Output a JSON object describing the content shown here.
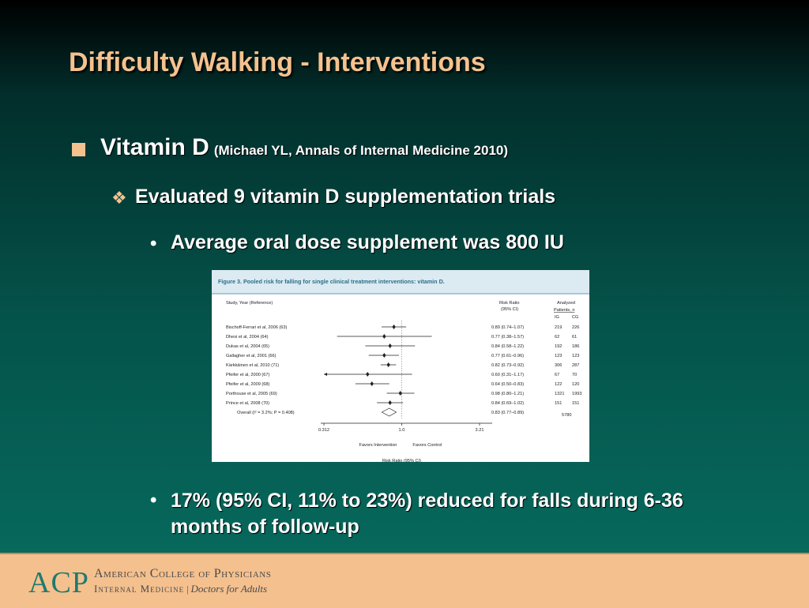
{
  "slide": {
    "title": "Difficulty Walking - Interventions",
    "l1_main": "Vitamin D",
    "l1_cite": "(Michael YL, Annals of Internal Medicine 2010)",
    "l2": "Evaluated 9 vitamin D supplementation trials",
    "l3": "Average oral dose supplement was 800 IU",
    "l4": "17% (95% CI, 11% to 23%) reduced for falls during 6-36 months of follow-up",
    "bullet_dot": "•",
    "bullet_dia": "❖"
  },
  "footer": {
    "acp": "ACP",
    "line1": "American College of Physicians",
    "line2_a": "Internal Medicine",
    "line2_sep": "|",
    "line2_b": "Doctors for Adults"
  },
  "chart_data": {
    "type": "forest",
    "title": "Figure 3. Pooled risk for falling for single clinical treatment interventions: vitamin D.",
    "headers": {
      "study": "Study, Year (Reference)",
      "rr": "Risk Ratio",
      "rr_sub": "(95% CI)",
      "analyzed": "Analyzed",
      "patients": "Patients, n",
      "ig": "IG",
      "cg": "CG"
    },
    "studies": [
      {
        "label": "Bischoff-Ferrari et al, 2006 (63)",
        "rr": 0.89,
        "lo": 0.74,
        "hi": 1.07,
        "rr_text": "0.89 (0.74–1.07)",
        "ig": "219",
        "cg": "226"
      },
      {
        "label": "Dhesi et al, 2004 (64)",
        "rr": 0.77,
        "lo": 0.38,
        "hi": 1.57,
        "rr_text": "0.77 (0.38–1.57)",
        "ig": "62",
        "cg": "61"
      },
      {
        "label": "Dukas et al, 2004 (65)",
        "rr": 0.84,
        "lo": 0.58,
        "hi": 1.22,
        "rr_text": "0.84 (0.58–1.22)",
        "ig": "192",
        "cg": "186"
      },
      {
        "label": "Gallagher et al, 2001 (66)",
        "rr": 0.77,
        "lo": 0.61,
        "hi": 0.96,
        "rr_text": "0.77 (0.61–0.96)",
        "ig": "123",
        "cg": "123"
      },
      {
        "label": "Kärkkäinen et al, 2010 (71)",
        "rr": 0.82,
        "lo": 0.73,
        "hi": 0.92,
        "rr_text": "0.82 (0.73–0.92)",
        "ig": "306",
        "cg": "287"
      },
      {
        "label": "Pfeifer et al, 2000 (67)",
        "rr": 0.6,
        "lo": 0.31,
        "hi": 1.17,
        "rr_text": "0.60 (0.31–1.17)",
        "ig": "67",
        "cg": "70"
      },
      {
        "label": "Pfeifer et al, 2009 (68)",
        "rr": 0.64,
        "lo": 0.5,
        "hi": 0.83,
        "rr_text": "0.64 (0.50–0.83)",
        "ig": "122",
        "cg": "120"
      },
      {
        "label": "Porthouse et al, 2005 (69)",
        "rr": 0.98,
        "lo": 0.8,
        "hi": 1.21,
        "rr_text": "0.98 (0.80–1.21)",
        "ig": "1321",
        "cg": "1993"
      },
      {
        "label": "Prince et al, 2008 (70)",
        "rr": 0.84,
        "lo": 0.69,
        "hi": 1.02,
        "rr_text": "0.84 (0.69–1.02)",
        "ig": "151",
        "cg": "151"
      }
    ],
    "overall": {
      "label": "Overall",
      "het": "(I² = 3.2%; P = 0.408)",
      "rr": 0.83,
      "lo": 0.77,
      "hi": 0.89,
      "rr_text": "0.83 (0.77–0.89)",
      "total": "5780"
    },
    "xscale": "log",
    "xlim": [
      0.312,
      3.21
    ],
    "xticks": [
      "0.312",
      "1.0",
      "3.21"
    ],
    "favors_left": "Favors Intervention",
    "favors_right": "Favors Control",
    "xlabel": "Risk Ratio (95% CI)",
    "colors": {
      "title": "#2a6f8e",
      "header_bg": "#dceaf1",
      "ink": "#222222"
    }
  }
}
